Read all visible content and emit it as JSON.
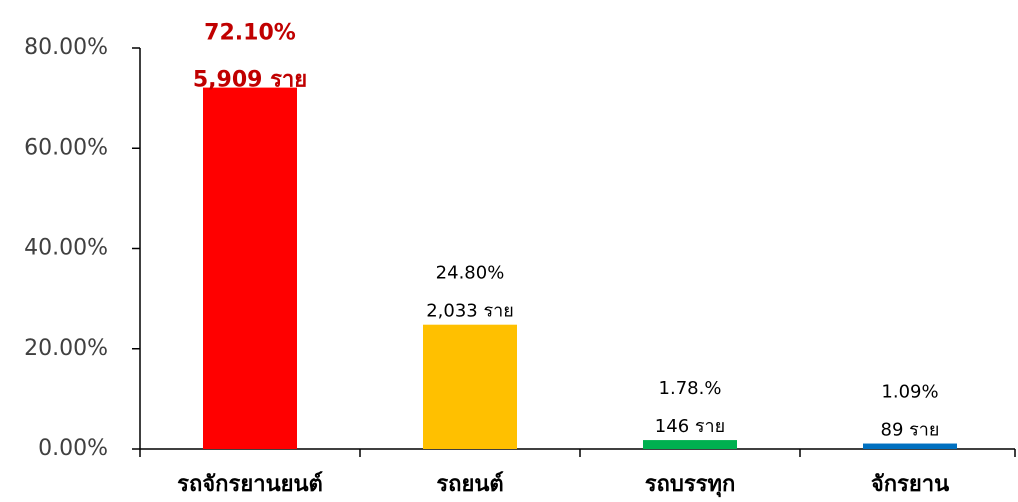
{
  "chart_data": {
    "type": "bar",
    "categories": [
      "รถจักรยานยนต์",
      "รถยนต์",
      "รถบรรทุก",
      "จักรยาน"
    ],
    "values": [
      72.1,
      24.8,
      1.78,
      1.09
    ],
    "value_labels": [
      "72.10%",
      "24.80%",
      "1.78.%",
      "1.09%"
    ],
    "count_labels": [
      "5,909 ราย",
      "2,033 ราย",
      "146 ราย",
      "89 ราย"
    ],
    "colors": [
      "#ff0000",
      "#ffc000",
      "#00b050",
      "#0070c0"
    ],
    "label_colors": [
      "#c00000",
      "#000000",
      "#000000",
      "#000000"
    ],
    "ylim": [
      0,
      80
    ],
    "yticks": [
      {
        "value": 0,
        "label": "0.00%"
      },
      {
        "value": 20,
        "label": "20.00%"
      },
      {
        "value": 40,
        "label": "40.00%"
      },
      {
        "value": 60,
        "label": "60.00%"
      },
      {
        "value": 80,
        "label": "80.00%"
      }
    ],
    "grid": false
  }
}
